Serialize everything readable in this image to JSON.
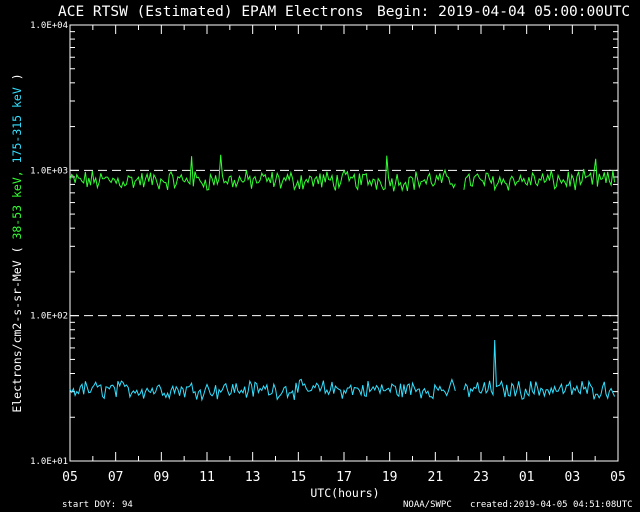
{
  "chart_data": {
    "type": "line",
    "title": "ACE RTSW (Estimated) EPAM Electrons",
    "begin_label": "Begin: 2019-04-04 05:00:00UTC",
    "xlabel": "UTC(hours)",
    "ylabel_prefix": "Electrons/cm2-s-sr-MeV",
    "ylabel_paren_open": "(",
    "ylabel_paren_close": ")",
    "y_scale": "log",
    "ylim": [
      10,
      10000
    ],
    "xlim": [
      0,
      24
    ],
    "y_ticks": [
      {
        "value": 10,
        "label": "1.0E+01"
      },
      {
        "value": 100,
        "label": "1.0E+02"
      },
      {
        "value": 1000,
        "label": "1.0E+03"
      },
      {
        "value": 10000,
        "label": "1.0E+04"
      }
    ],
    "x_ticks": [
      {
        "value": 0,
        "label": "05"
      },
      {
        "value": 2,
        "label": "07"
      },
      {
        "value": 4,
        "label": "09"
      },
      {
        "value": 6,
        "label": "11"
      },
      {
        "value": 8,
        "label": "13"
      },
      {
        "value": 10,
        "label": "15"
      },
      {
        "value": 12,
        "label": "17"
      },
      {
        "value": 14,
        "label": "19"
      },
      {
        "value": 16,
        "label": "21"
      },
      {
        "value": 18,
        "label": "23"
      },
      {
        "value": 20,
        "label": "01"
      },
      {
        "value": 22,
        "label": "03"
      },
      {
        "value": 24,
        "label": "05"
      }
    ],
    "reference_lines": [
      1000,
      100
    ],
    "grid": false,
    "data_gap_hours": [
      16.9,
      17.2
    ],
    "series": [
      {
        "name": "38-53 keV",
        "color": "#33ff33",
        "typical_value": 850,
        "spread": 0.055,
        "spikes": [
          {
            "x": 5.3,
            "value": 1250
          },
          {
            "x": 6.6,
            "value": 1280
          },
          {
            "x": 13.9,
            "value": 1260
          },
          {
            "x": 23.0,
            "value": 1200
          }
        ]
      },
      {
        "name": "175-315 keV",
        "color": "#33e0ff",
        "typical_value": 31,
        "spread": 0.05,
        "spikes": [
          {
            "x": 18.6,
            "value": 68
          },
          {
            "x": 23.9,
            "value": 39
          }
        ]
      }
    ],
    "footer": {
      "start_doy_label": "start DOY:",
      "start_doy": "94",
      "source": "NOAA/SWPC",
      "created": "created:2019-04-05 04:51:08UTC"
    }
  }
}
